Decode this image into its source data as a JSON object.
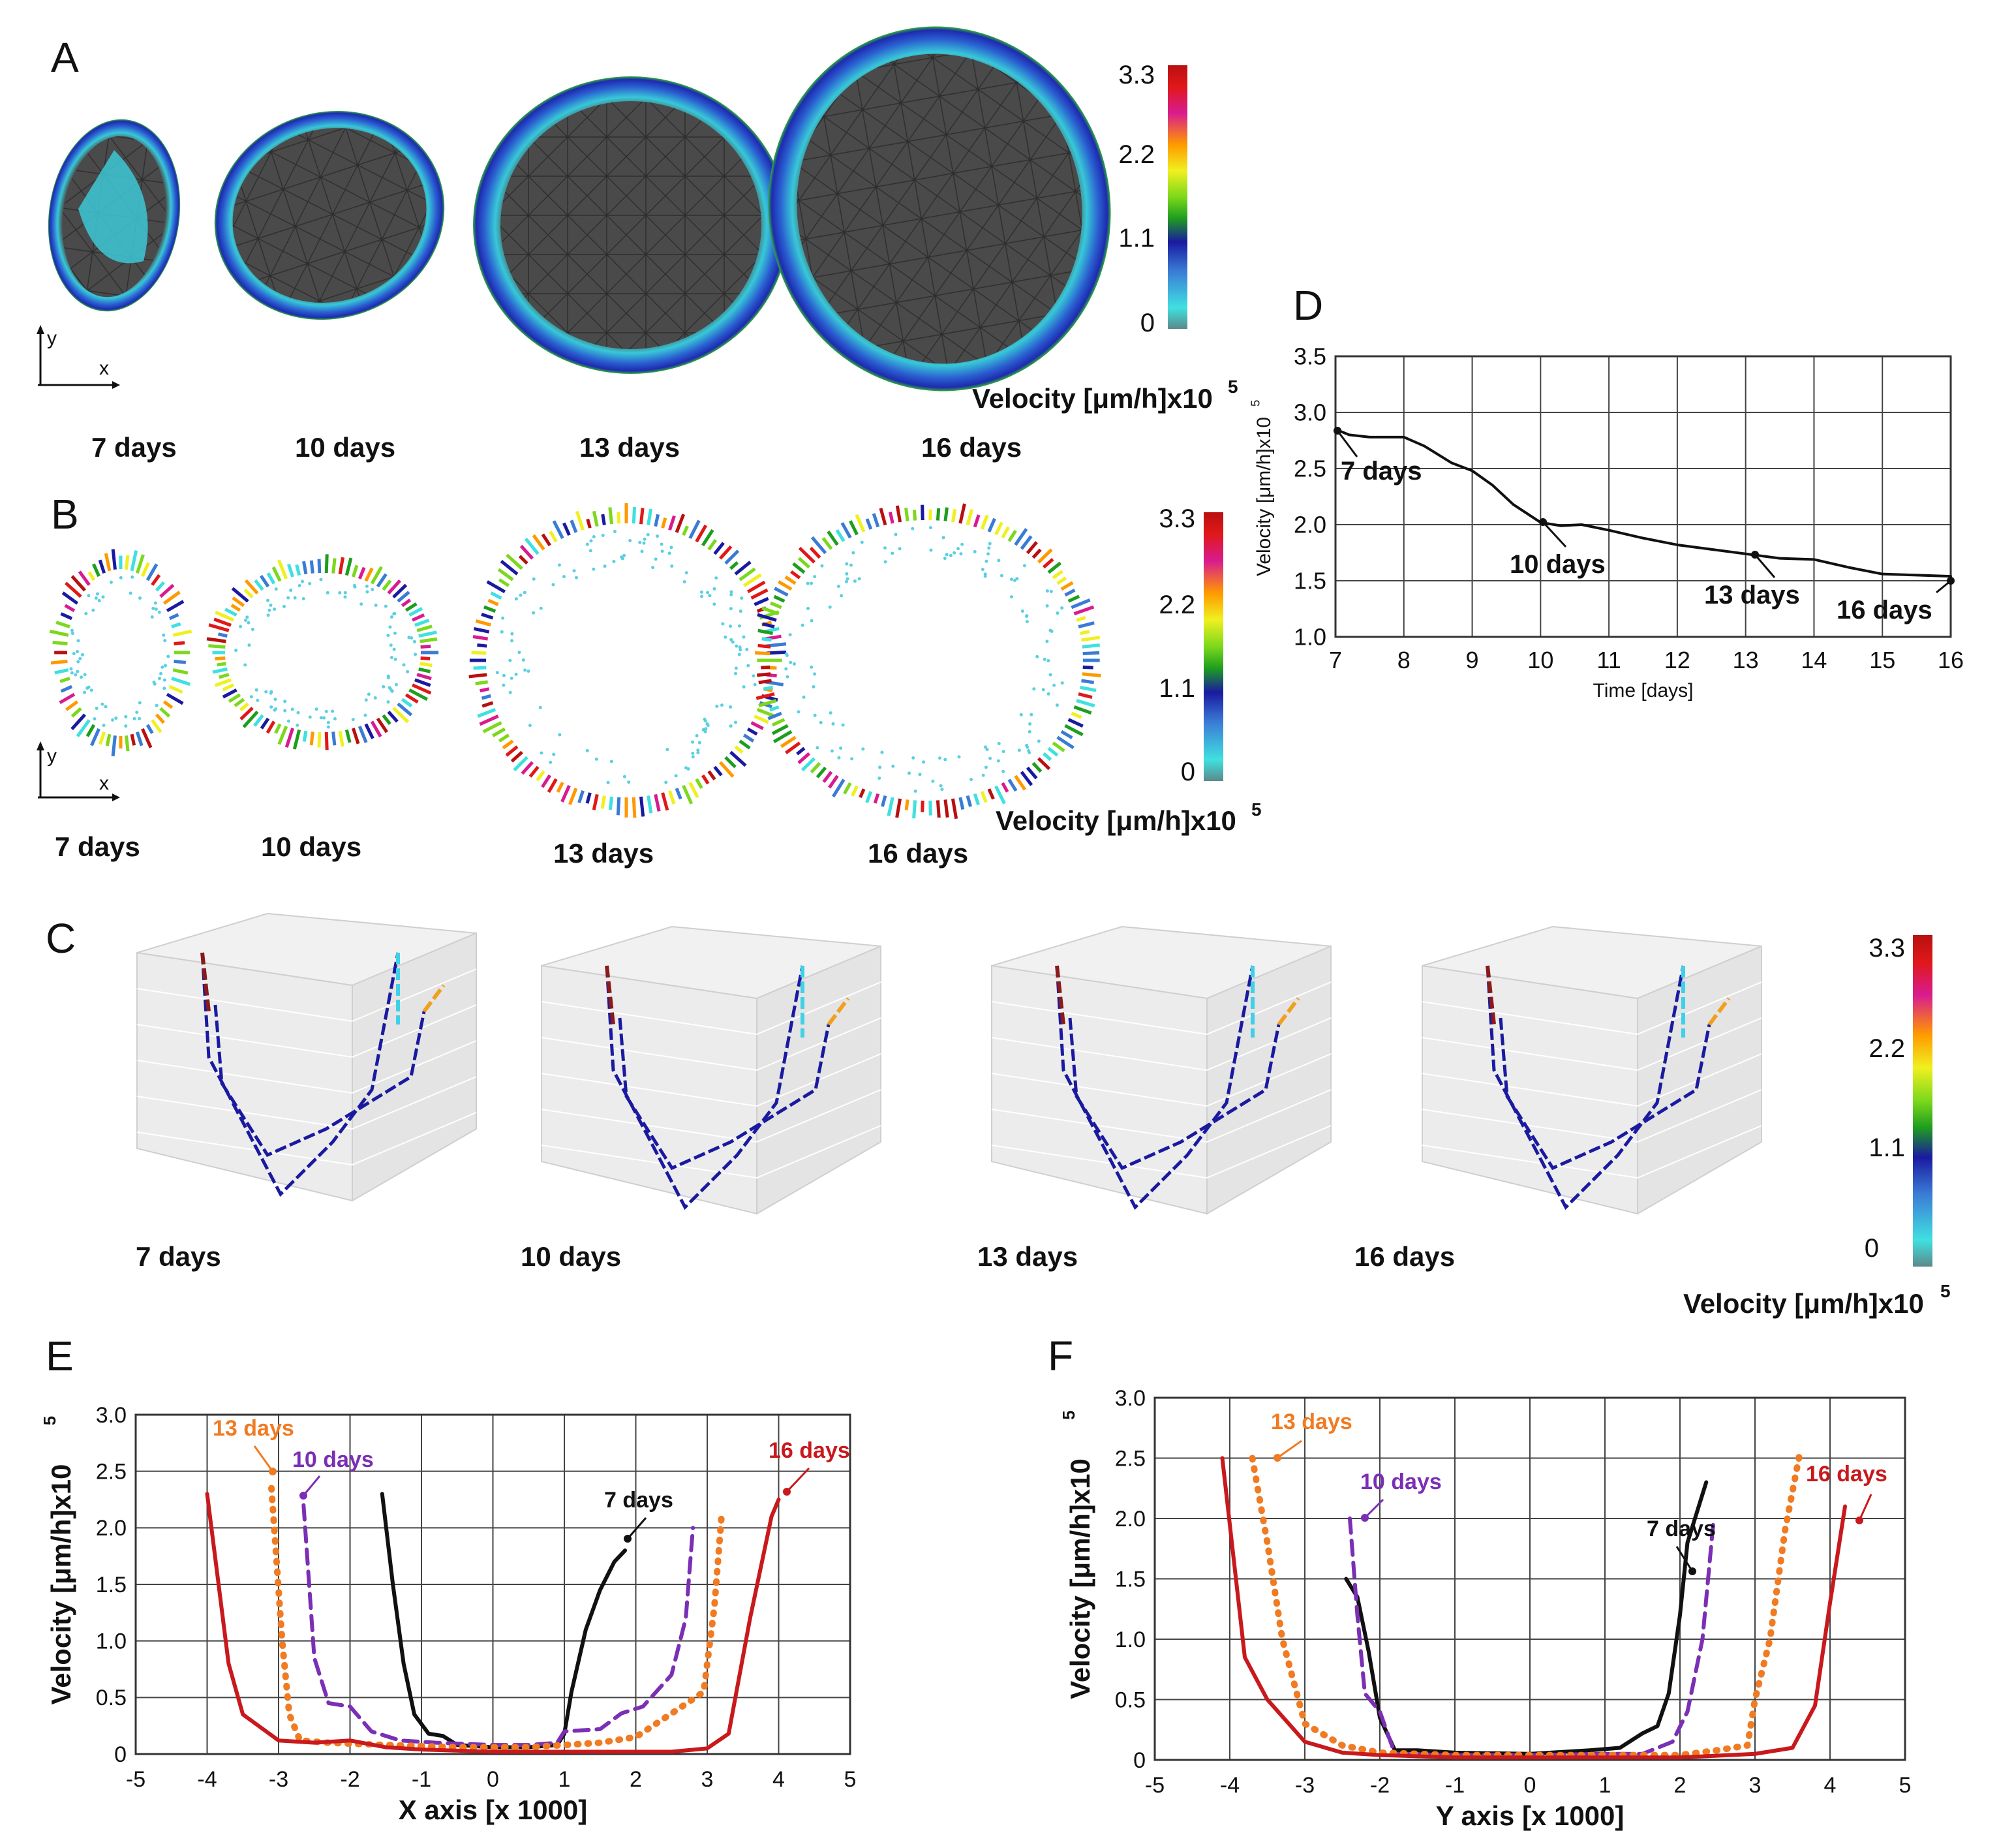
{
  "figure": {
    "panels": {
      "A": {
        "letter": "A",
        "axis_labels": {
          "y": "y",
          "x": "x"
        },
        "days": [
          "7 days",
          "10 days",
          "13 days",
          "16 days"
        ],
        "colorbar": {
          "ticks": [
            "3.3",
            "2.2",
            "1.1",
            "0"
          ],
          "label": "Velocity [μm/h]x10",
          "exp": "5"
        }
      },
      "B": {
        "letter": "B",
        "axis_labels": {
          "y": "y",
          "x": "x"
        },
        "days": [
          "7 days",
          "10 days",
          "13 days",
          "16 days"
        ],
        "colorbar": {
          "ticks": [
            "3.3",
            "2.2",
            "1.1",
            "0"
          ],
          "label": "Velocity [μm/h]x10",
          "exp": "5"
        }
      },
      "C": {
        "letter": "C",
        "days": [
          "7 days",
          "10 days",
          "13 days",
          "16 days"
        ],
        "colorbar": {
          "ticks": [
            "3.3",
            "2.2",
            "1.1",
            "0"
          ],
          "label": "Velocity [μm/h]x10",
          "exp": "5"
        }
      },
      "D": {
        "letter": "D"
      },
      "E": {
        "letter": "E"
      },
      "F": {
        "letter": "F"
      }
    },
    "colormap": [
      "#5a8a8a",
      "#40e0e0",
      "#3a7bd5",
      "#1a1aa0",
      "#1e9e1e",
      "#7cd81c",
      "#f0f020",
      "#ff9900",
      "#d81b8f",
      "#e01818",
      "#b81010"
    ]
  },
  "chart_data": [
    {
      "id": "D",
      "type": "line",
      "xlabel": "Time [days]",
      "ylabel": "Velocity [μm/h]x10",
      "ylabel_exp": "5",
      "xlim": [
        7,
        16
      ],
      "ylim": [
        1.0,
        3.5
      ],
      "xticks": [
        "7",
        "8",
        "9",
        "10",
        "11",
        "12",
        "13",
        "14",
        "15",
        "16"
      ],
      "yticks": [
        "1.0",
        "1.5",
        "2.0",
        "2.5",
        "3.0",
        "3.5"
      ],
      "grid": true,
      "series": [
        {
          "color": "#111111",
          "x": [
            7.0,
            7.2,
            7.5,
            8.0,
            8.3,
            8.7,
            9.0,
            9.3,
            9.6,
            10.0,
            10.3,
            10.6,
            11.0,
            11.5,
            12.0,
            12.5,
            13.0,
            13.5,
            14.0,
            14.5,
            15.0,
            15.5,
            16.0
          ],
          "values": [
            2.85,
            2.8,
            2.78,
            2.78,
            2.7,
            2.55,
            2.48,
            2.35,
            2.18,
            2.02,
            1.99,
            2.0,
            1.95,
            1.88,
            1.82,
            1.78,
            1.74,
            1.7,
            1.69,
            1.62,
            1.56,
            1.55,
            1.54
          ]
        }
      ],
      "annotations": [
        {
          "text": "7 days",
          "x": 7,
          "y": 2.85
        },
        {
          "text": "10 days",
          "x": 10,
          "y": 2.02
        },
        {
          "text": "13 days",
          "x": 13.1,
          "y": 1.74
        },
        {
          "text": "16 days",
          "x": 16,
          "y": 1.54
        }
      ]
    },
    {
      "id": "E",
      "type": "line",
      "xlabel": "X axis [x 1000]",
      "ylabel": "Velocity [μm/h]x10",
      "ylabel_exp": "5",
      "xlim": [
        -5,
        5
      ],
      "ylim": [
        0,
        3.0
      ],
      "xticks": [
        "-5",
        "-4",
        "-3",
        "-2",
        "-1",
        "0",
        "1",
        "2",
        "3",
        "4",
        "5"
      ],
      "yticks": [
        "0",
        "0.5",
        "1.0",
        "1.5",
        "2.0",
        "2.5",
        "3.0"
      ],
      "grid": true,
      "series": [
        {
          "name": "7 days",
          "color": "#111111",
          "dash": "solid",
          "x": [
            -1.55,
            -1.4,
            -1.25,
            -1.1,
            -0.9,
            -0.7,
            -0.5,
            0.0,
            0.5,
            0.9,
            1.0,
            1.1,
            1.3,
            1.5,
            1.7,
            1.85
          ],
          "values": [
            2.3,
            1.5,
            0.8,
            0.35,
            0.18,
            0.16,
            0.08,
            0.06,
            0.06,
            0.08,
            0.18,
            0.55,
            1.1,
            1.45,
            1.7,
            1.8
          ]
        },
        {
          "name": "10 days",
          "color": "#7b2fb5",
          "dash": "dashed",
          "x": [
            -2.65,
            -2.5,
            -2.3,
            -2.0,
            -1.7,
            -1.3,
            -0.8,
            0.0,
            0.5,
            0.9,
            1.0,
            1.5,
            1.8,
            2.1,
            2.5,
            2.7,
            2.8
          ],
          "values": [
            2.2,
            0.85,
            0.45,
            0.42,
            0.2,
            0.12,
            0.1,
            0.08,
            0.08,
            0.1,
            0.2,
            0.22,
            0.36,
            0.42,
            0.7,
            1.2,
            2.0
          ]
        },
        {
          "name": "13 days",
          "color": "#f07b22",
          "dash": "dotted",
          "x": [
            -3.1,
            -2.95,
            -2.85,
            -2.7,
            -2.3,
            -1.5,
            -0.5,
            0.5,
            1.5,
            2.0,
            2.6,
            2.95,
            3.1,
            3.2
          ],
          "values": [
            2.35,
            1.0,
            0.35,
            0.12,
            0.1,
            0.08,
            0.06,
            0.06,
            0.1,
            0.15,
            0.4,
            0.55,
            1.3,
            2.1
          ]
        },
        {
          "name": "16 days",
          "color": "#c8191c",
          "dash": "solid",
          "x": [
            -4.0,
            -3.7,
            -3.5,
            -3.0,
            -2.5,
            -2.0,
            -1.5,
            -1.0,
            0.0,
            1.0,
            2.0,
            2.5,
            3.0,
            3.3,
            3.6,
            3.9,
            4.0
          ],
          "values": [
            2.3,
            0.8,
            0.35,
            0.12,
            0.1,
            0.12,
            0.06,
            0.04,
            0.02,
            0.02,
            0.02,
            0.02,
            0.05,
            0.18,
            1.2,
            2.1,
            2.25
          ]
        }
      ],
      "annotations": [
        {
          "text": "13 days",
          "series": "13 days"
        },
        {
          "text": "10 days",
          "series": "10 days"
        },
        {
          "text": "7 days",
          "series": "7 days"
        },
        {
          "text": "16 days",
          "series": "16 days"
        }
      ]
    },
    {
      "id": "F",
      "type": "line",
      "xlabel": "Y axis [x 1000]",
      "ylabel": "Velocity [μm/h]x10",
      "ylabel_exp": "5",
      "xlim": [
        -5,
        5
      ],
      "ylim": [
        0,
        3.0
      ],
      "xticks": [
        "-5",
        "-4",
        "-3",
        "-2",
        "-1",
        "0",
        "1",
        "2",
        "3",
        "4",
        "5"
      ],
      "yticks": [
        "0",
        "0.5",
        "1.0",
        "1.5",
        "2.0",
        "2.5",
        "3.0"
      ],
      "grid": true,
      "series": [
        {
          "name": "7 days",
          "color": "#111111",
          "dash": "solid",
          "x": [
            -2.45,
            -2.3,
            -2.15,
            -2.0,
            -1.8,
            -1.5,
            -1.0,
            0.0,
            0.8,
            1.2,
            1.5,
            1.7,
            1.85,
            2.0,
            2.1,
            2.35
          ],
          "values": [
            1.5,
            1.35,
            0.9,
            0.35,
            0.08,
            0.08,
            0.06,
            0.05,
            0.08,
            0.1,
            0.22,
            0.28,
            0.55,
            1.2,
            1.8,
            2.3
          ]
        },
        {
          "name": "10 days",
          "color": "#7b2fb5",
          "dash": "dashed",
          "x": [
            -2.4,
            -2.3,
            -2.2,
            -2.0,
            -1.8,
            -1.0,
            0.0,
            1.0,
            1.5,
            1.9,
            2.1,
            2.3,
            2.45
          ],
          "values": [
            2.0,
            1.2,
            0.55,
            0.4,
            0.05,
            0.04,
            0.04,
            0.05,
            0.05,
            0.15,
            0.4,
            1.0,
            2.0
          ]
        },
        {
          "name": "13 days",
          "color": "#f07b22",
          "dash": "dotted",
          "x": [
            -3.7,
            -3.5,
            -3.3,
            -3.0,
            -2.5,
            -2.0,
            -1.0,
            0.0,
            1.0,
            2.0,
            2.5,
            2.9,
            3.0,
            3.2,
            3.4,
            3.6
          ],
          "values": [
            2.5,
            1.8,
            1.0,
            0.3,
            0.12,
            0.06,
            0.04,
            0.04,
            0.04,
            0.04,
            0.08,
            0.12,
            0.5,
            1.0,
            1.9,
            2.55
          ]
        },
        {
          "name": "16 days",
          "color": "#c8191c",
          "dash": "solid",
          "x": [
            -4.1,
            -3.8,
            -3.5,
            -3.0,
            -2.5,
            -2.0,
            -1.0,
            0.0,
            1.0,
            2.0,
            3.0,
            3.5,
            3.8,
            4.0,
            4.2
          ],
          "values": [
            2.5,
            0.85,
            0.5,
            0.15,
            0.06,
            0.04,
            0.02,
            0.02,
            0.02,
            0.02,
            0.05,
            0.1,
            0.45,
            1.3,
            2.1
          ]
        }
      ],
      "annotations": [
        {
          "text": "13 days",
          "series": "13 days"
        },
        {
          "text": "10 days",
          "series": "10 days"
        },
        {
          "text": "7 days",
          "series": "7 days"
        },
        {
          "text": "16 days",
          "series": "16 days"
        }
      ]
    }
  ]
}
